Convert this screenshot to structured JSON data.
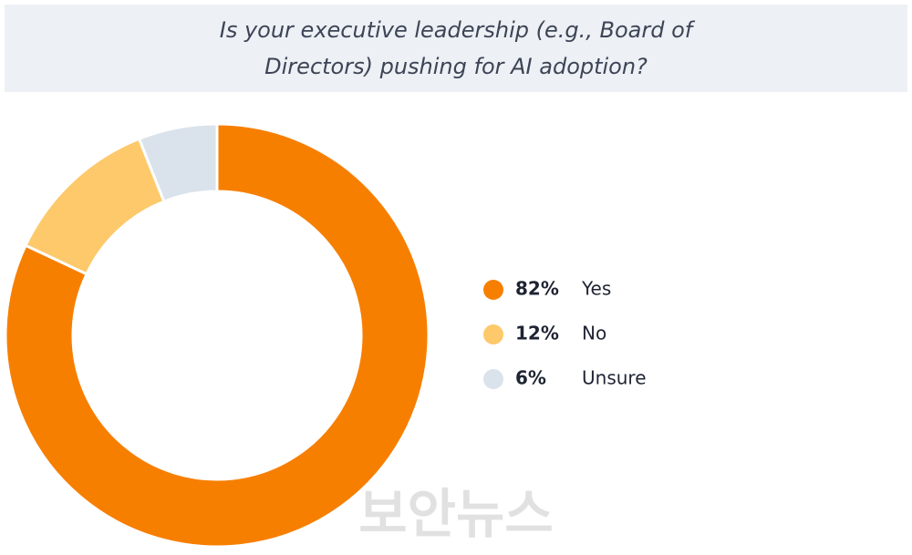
{
  "chart_data": {
    "type": "donut",
    "title": "Is your executive leadership (e.g., Board of Directors) pushing for AI adoption?",
    "categories": [
      "Yes",
      "No",
      "Unsure"
    ],
    "values": [
      82,
      12,
      6
    ],
    "value_labels": [
      "82%",
      "12%",
      "6%"
    ],
    "colors": [
      "#f77f00",
      "#fdc96b",
      "#dae2eb"
    ],
    "watermark": "보안뉴스"
  }
}
